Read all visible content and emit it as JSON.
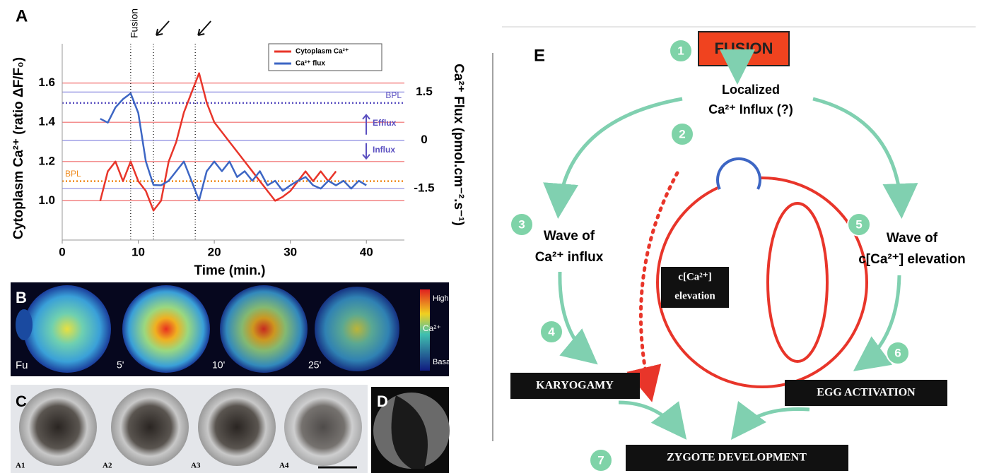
{
  "chart_data": {
    "type": "line",
    "panel_label": "A",
    "xlabel": "Time (min.)",
    "ylabel": "Cytoplasm Ca²⁺ (ratio ΔF/F₀)",
    "y2label": "Ca²⁺ Flux (pmol.cm⁻².s⁻¹)",
    "x": [
      5,
      6,
      7,
      8,
      9,
      10,
      11,
      12,
      13,
      14,
      15,
      16,
      17,
      18,
      19,
      20,
      21,
      22,
      23,
      24,
      25,
      26,
      27,
      28,
      29,
      30,
      31,
      32,
      33,
      34,
      35,
      36,
      37,
      38,
      39,
      40
    ],
    "series": [
      {
        "name": "Cytoplasm Ca²⁺",
        "color": "#e8352a",
        "axis": "y",
        "values": [
          1.0,
          1.15,
          1.2,
          1.1,
          1.2,
          1.1,
          1.05,
          0.95,
          1.0,
          1.2,
          1.3,
          1.45,
          1.55,
          1.65,
          1.5,
          1.4,
          1.35,
          1.3,
          1.25,
          1.2,
          1.15,
          1.1,
          1.05,
          1.0,
          1.02,
          1.05,
          1.1,
          1.15,
          1.1,
          1.15,
          1.1,
          1.15,
          null,
          null,
          null,
          null
        ]
      },
      {
        "name": "Ca²⁺ flux",
        "color": "#3d66c4",
        "axis": "y2",
        "values": [
          0.67,
          0.55,
          1.02,
          1.28,
          1.46,
          0.85,
          -0.66,
          -1.39,
          -1.4,
          -1.26,
          -0.96,
          -0.66,
          -1.26,
          -1.87,
          -0.96,
          -0.66,
          -0.96,
          -0.66,
          -1.14,
          -0.96,
          -1.26,
          -0.96,
          -1.4,
          -1.26,
          -1.57,
          -1.4,
          -1.26,
          -1.14,
          -1.4,
          -1.5,
          -1.26,
          -1.4,
          -1.26,
          -1.5,
          -1.26,
          -1.4
        ]
      }
    ],
    "xlim": [
      0,
      45
    ],
    "xticks": [
      0,
      10,
      20,
      30,
      40
    ],
    "ylim": [
      0.8,
      1.8
    ],
    "yticks": [
      {
        "value": 1,
        "label": "1.0"
      },
      1.2,
      1.4,
      1.6
    ],
    "y2lim": [
      -3.1,
      3.0
    ],
    "y2ticks": [
      1.5,
      0,
      -1.5
    ],
    "y_grid_color": "#f06a6a",
    "y2_grid_color": "#8a8ae0",
    "reference_lines": [
      {
        "label": "BPL",
        "value": 1.1,
        "axis": "y",
        "color": "#f08a1c"
      },
      {
        "label": "BPL",
        "value": 1.16,
        "axis": "y2",
        "color": "#5a4fc0"
      }
    ],
    "event_lines": [
      9,
      12,
      17.5
    ],
    "event_label": "Fusion",
    "flux_annotations": [
      "Efflux",
      "Influx"
    ]
  },
  "panel_b": {
    "label": "B",
    "frame_labels": [
      "Fu",
      "5'",
      "10'",
      "25'"
    ],
    "colorbar": [
      "High",
      "Ca²⁺",
      "Basal"
    ]
  },
  "panel_c": {
    "label": "C",
    "frame_labels": [
      "A1",
      "A2",
      "A3",
      "A4"
    ]
  },
  "panel_d": {
    "label": "D"
  },
  "panel_e": {
    "label": "E",
    "step_numbers": [
      "1",
      "2",
      "3",
      "4",
      "5",
      "6",
      "7"
    ],
    "fusion": "FUSION",
    "localized": [
      "Localized",
      "Ca²⁺ Influx (?)"
    ],
    "wave_influx": [
      "Wave of",
      "Ca²⁺ influx"
    ],
    "wave_elevation": [
      "Wave of",
      "c[Ca²⁺] elevation"
    ],
    "center": [
      "c[Ca²⁺]",
      "elevation"
    ],
    "karyogamy": "KARYOGAMY",
    "egg_activation": "EGG ACTIVATION",
    "zygote": "ZYGOTE DEVELOPMENT"
  }
}
